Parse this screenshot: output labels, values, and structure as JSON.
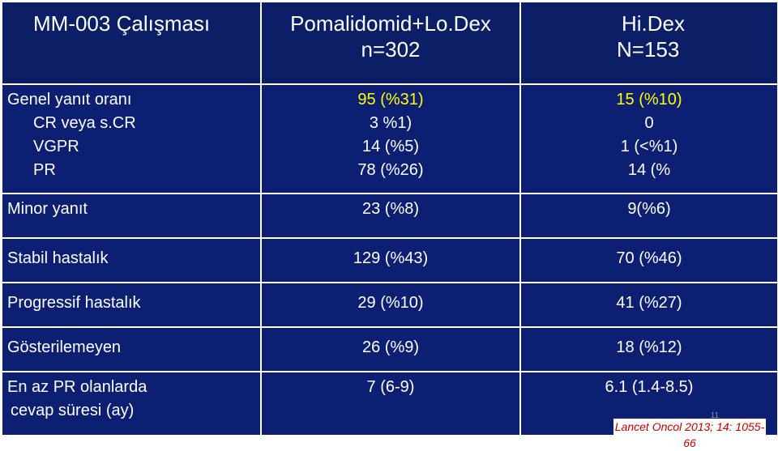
{
  "header": {
    "col1": "MM-003 Çalışması",
    "col2_line1": "Pomalidomid+Lo.Dex",
    "col2_line2": "n=302",
    "col3_line1": "Hi.Dex",
    "col3_line2": "N=153"
  },
  "rows": [
    {
      "label_lines": [
        "Genel yanıt oranı",
        "CR veya s.CR",
        "VGPR",
        "PR"
      ],
      "col2_lines": [
        "95 (%31)",
        "3 %1)",
        "14 (%5)",
        "78 (%26)"
      ],
      "col3_lines": [
        "15 (%10)",
        "0",
        "1 (<%1)",
        "14 (%"
      ]
    },
    {
      "label": "Minor yanıt",
      "col2": "23 (%8)",
      "col3": "9(%6)"
    },
    {
      "label": "Stabil hastalık",
      "col2": "129 (%43)",
      "col3": "70 (%46)"
    },
    {
      "label": "Progressif hastalık",
      "col2": "29 (%10)",
      "col3": "41 (%27)"
    },
    {
      "label": "Gösterilemeyen",
      "col2": "26 (%9)",
      "col3": "18 (%12)"
    },
    {
      "label_lines": [
        "En az PR olanlarda",
        "cevap süresi (ay)"
      ],
      "col2": "7 (6-9)",
      "col3": "6.1 (1.4-8.5)"
    }
  ],
  "citation": "Lancet Oncol 2013; 14: 1055-66",
  "slide_number": "11",
  "colors": {
    "cell_background": "#0d1f73",
    "header_background": "#0b1e66",
    "text": "#ffffff",
    "highlight": "#ffff00",
    "citation": "#c00000"
  }
}
